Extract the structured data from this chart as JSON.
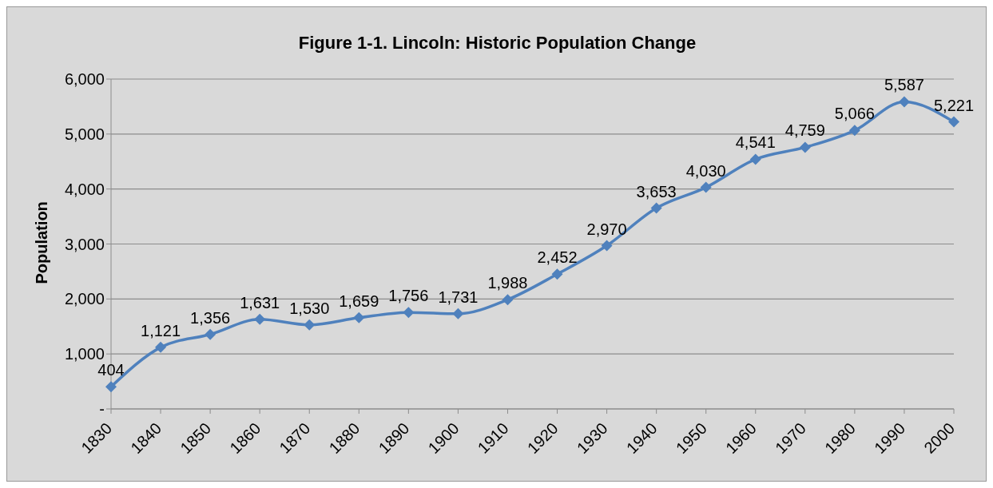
{
  "chart_data": {
    "type": "line",
    "title": "Figure 1-1. Lincoln: Historic Population Change",
    "ylabel": "Population",
    "categories": [
      "1830",
      "1840",
      "1850",
      "1860",
      "1870",
      "1880",
      "1890",
      "1900",
      "1910",
      "1920",
      "1930",
      "1940",
      "1950",
      "1960",
      "1970",
      "1980",
      "1990",
      "2000"
    ],
    "series": [
      {
        "color": "#4f81bd",
        "values": [
          404,
          1121,
          1356,
          1631,
          1530,
          1659,
          1756,
          1731,
          1988,
          2452,
          2970,
          3653,
          4030,
          4541,
          4759,
          5066,
          5587,
          5221
        ],
        "value_labels": [
          "404",
          "1,121",
          "1,356",
          "1,631",
          "1,530",
          "1,659",
          "1,756",
          "1,731",
          "1,988",
          "2,452",
          "2,970",
          "3,653",
          "4,030",
          "4,541",
          "4,759",
          "5,066",
          "5,587",
          "5,221"
        ]
      }
    ],
    "ylim": [
      0,
      6000
    ],
    "yticks": [
      {
        "value": 0,
        "label": "-"
      },
      {
        "value": 1000,
        "label": "1,000"
      },
      {
        "value": 2000,
        "label": "2,000"
      },
      {
        "value": 3000,
        "label": "3,000"
      },
      {
        "value": 4000,
        "label": "4,000"
      },
      {
        "value": 5000,
        "label": "5,000"
      },
      {
        "value": 6000,
        "label": "6,000"
      }
    ],
    "grid": "y",
    "marker": "diamond",
    "line_style": "solid",
    "legend": false
  }
}
